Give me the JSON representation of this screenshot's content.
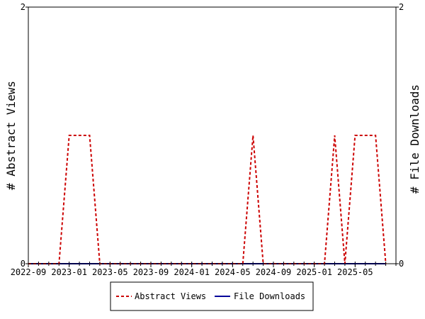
{
  "chart_data": {
    "type": "line",
    "x_ticks": [
      "2022-09",
      "2023-01",
      "2023-05",
      "2023-09",
      "2024-01",
      "2024-05",
      "2024-09",
      "2025-01",
      "2025-05"
    ],
    "x_range": [
      "2022-09",
      "2025-09"
    ],
    "ylabel_left": "# Abstract Views",
    "ylabel_right": "# File Downloads",
    "ylim_left": [
      0,
      2
    ],
    "ylim_right": [
      0,
      2
    ],
    "y_ticks_left": [
      "0",
      "2"
    ],
    "y_ticks_right": [
      "0",
      "2"
    ],
    "grid": false,
    "legend_position": "bottom-center",
    "series": [
      {
        "name": "Abstract Views",
        "color": "#cc0000",
        "style": "dashed",
        "axis": "left",
        "x": [
          "2022-09",
          "2022-10",
          "2022-11",
          "2022-12",
          "2023-01",
          "2023-02",
          "2023-03",
          "2023-04",
          "2023-05",
          "2023-06",
          "2023-07",
          "2023-08",
          "2023-09",
          "2023-10",
          "2023-11",
          "2023-12",
          "2024-01",
          "2024-02",
          "2024-03",
          "2024-04",
          "2024-05",
          "2024-06",
          "2024-07",
          "2024-08",
          "2024-09",
          "2024-10",
          "2024-11",
          "2024-12",
          "2025-01",
          "2025-02",
          "2025-03",
          "2025-04",
          "2025-05",
          "2025-06",
          "2025-07",
          "2025-08"
        ],
        "values": [
          0,
          0,
          0,
          0,
          1,
          1,
          1,
          0,
          0,
          0,
          0,
          0,
          0,
          0,
          0,
          0,
          0,
          0,
          0,
          0,
          0,
          0,
          1,
          0,
          0,
          0,
          0,
          0,
          0,
          0,
          1,
          0,
          1,
          1,
          1,
          0
        ]
      },
      {
        "name": "File Downloads",
        "color": "#000099",
        "style": "solid",
        "axis": "right",
        "x": [
          "2022-09",
          "2022-10",
          "2022-11",
          "2022-12",
          "2023-01",
          "2023-02",
          "2023-03",
          "2023-04",
          "2023-05",
          "2023-06",
          "2023-07",
          "2023-08",
          "2023-09",
          "2023-10",
          "2023-11",
          "2023-12",
          "2024-01",
          "2024-02",
          "2024-03",
          "2024-04",
          "2024-05",
          "2024-06",
          "2024-07",
          "2024-08",
          "2024-09",
          "2024-10",
          "2024-11",
          "2024-12",
          "2025-01",
          "2025-02",
          "2025-03",
          "2025-04",
          "2025-05",
          "2025-06",
          "2025-07",
          "2025-08"
        ],
        "values": [
          0,
          0,
          0,
          0,
          0,
          0,
          0,
          0,
          0,
          0,
          0,
          0,
          0,
          0,
          0,
          0,
          0,
          0,
          0,
          0,
          0,
          0,
          0,
          0,
          0,
          0,
          0,
          0,
          0,
          0,
          0,
          0,
          0,
          0,
          0,
          0
        ]
      }
    ],
    "legend": [
      "Abstract Views",
      "File Downloads"
    ]
  }
}
